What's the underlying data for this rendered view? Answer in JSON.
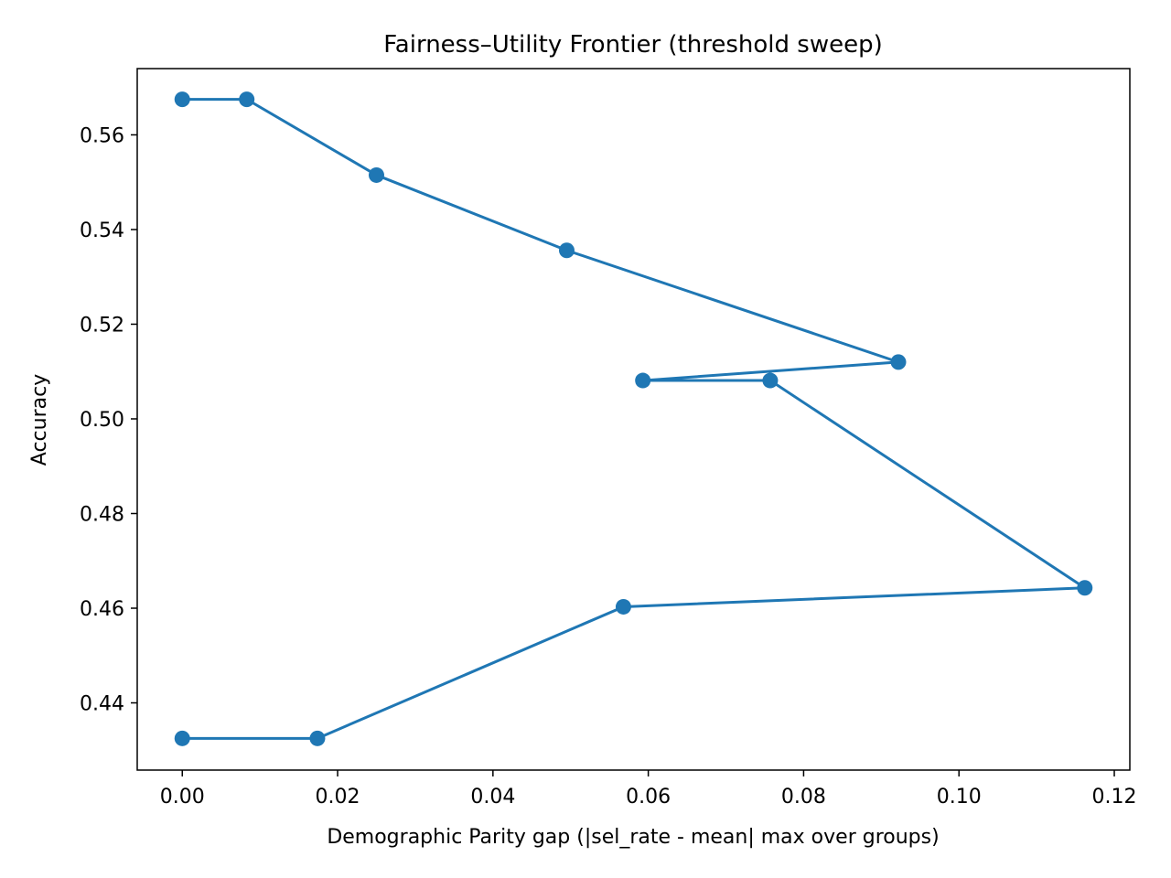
{
  "chart_data": {
    "type": "line",
    "title": "Fairness–Utility Frontier (threshold sweep)",
    "xlabel": "Demographic Parity gap (|sel_rate - mean| max over groups)",
    "ylabel": "Accuracy",
    "xlim": [
      -0.0058,
      0.122
    ],
    "ylim": [
      0.4258,
      0.574
    ],
    "x_ticks": [
      0.0,
      0.02,
      0.04,
      0.06,
      0.08,
      0.1,
      0.12
    ],
    "x_tick_labels": [
      "0.00",
      "0.02",
      "0.04",
      "0.06",
      "0.08",
      "0.10",
      "0.12"
    ],
    "y_ticks": [
      0.44,
      0.46,
      0.48,
      0.5,
      0.52,
      0.54,
      0.56
    ],
    "y_tick_labels": [
      "0.44",
      "0.46",
      "0.48",
      "0.50",
      "0.52",
      "0.54",
      "0.56"
    ],
    "grid": false,
    "series": [
      {
        "color": "#1f77b4",
        "marker": "circle",
        "x": [
          0.0,
          0.0083,
          0.025,
          0.0495,
          0.0922,
          0.0593,
          0.0757,
          0.1162,
          0.0568,
          0.0174,
          0.0
        ],
        "y": [
          0.5675,
          0.5675,
          0.5515,
          0.5356,
          0.512,
          0.5081,
          0.5081,
          0.4643,
          0.4603,
          0.4325,
          0.4325
        ]
      }
    ]
  }
}
